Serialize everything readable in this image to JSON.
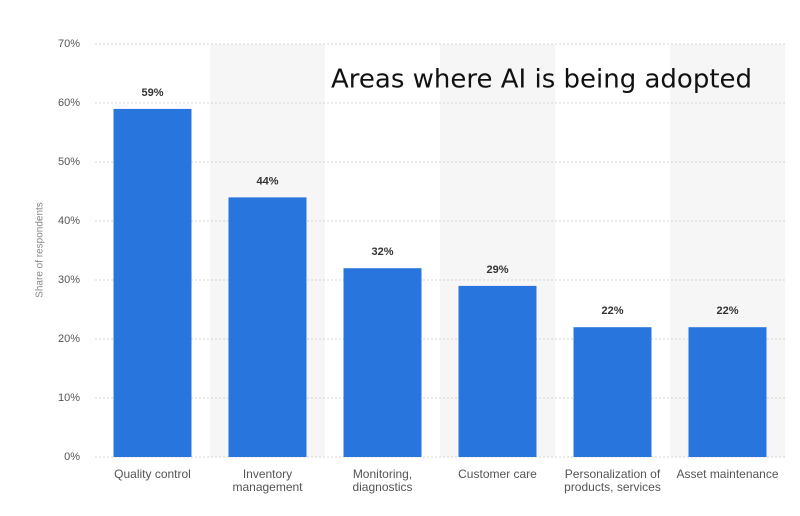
{
  "chart_data": {
    "type": "bar",
    "title": "Areas where AI is being adopted",
    "y_label": "Share of respondents",
    "categories": [
      "Quality control",
      "Inventory\nmanagement",
      "Monitoring,\ndiagnostics",
      "Customer care",
      "Personalization of\nproducts, services",
      "Asset maintenance"
    ],
    "values": [
      59,
      44,
      32,
      29,
      22,
      22
    ],
    "value_labels": [
      "59%",
      "44%",
      "32%",
      "29%",
      "22%",
      "22%"
    ],
    "color": "#2876dd",
    "ylim": [
      0,
      70
    ],
    "yticks": [
      {
        "value": 0,
        "label": "0%"
      },
      {
        "value": 10,
        "label": "10%"
      },
      {
        "value": 20,
        "label": "20%"
      },
      {
        "value": 30,
        "label": "30%"
      },
      {
        "value": 40,
        "label": "40%"
      },
      {
        "value": 50,
        "label": "50%"
      },
      {
        "value": 60,
        "label": "60%"
      },
      {
        "value": 70,
        "label": "70%"
      }
    ],
    "grid": true
  }
}
